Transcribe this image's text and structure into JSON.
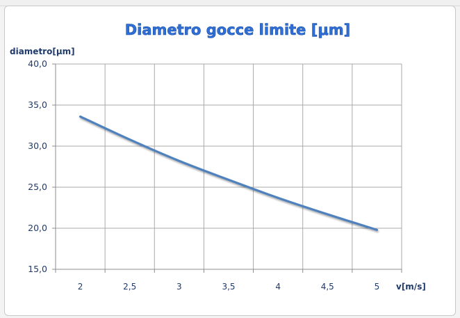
{
  "chart_data": {
    "type": "line",
    "title": "Diametro gocce limite [μm]",
    "xlabel": "v[m/s]",
    "ylabel": "diametro[μm]",
    "categories": [
      "2",
      "2,5",
      "3",
      "3,5",
      "4",
      "4,5",
      "5"
    ],
    "x": [
      2,
      2.5,
      3,
      3.5,
      4,
      4.5,
      5
    ],
    "y_ticks": [
      "15,0",
      "20,0",
      "25,0",
      "30,0",
      "35,0",
      "40,0"
    ],
    "ylim": [
      15,
      40
    ],
    "series": [
      {
        "values": [
          33.6,
          30.8,
          28.2,
          25.9,
          23.7,
          21.7,
          19.8
        ]
      }
    ],
    "grid": true,
    "line_color": "#4f81bd"
  }
}
